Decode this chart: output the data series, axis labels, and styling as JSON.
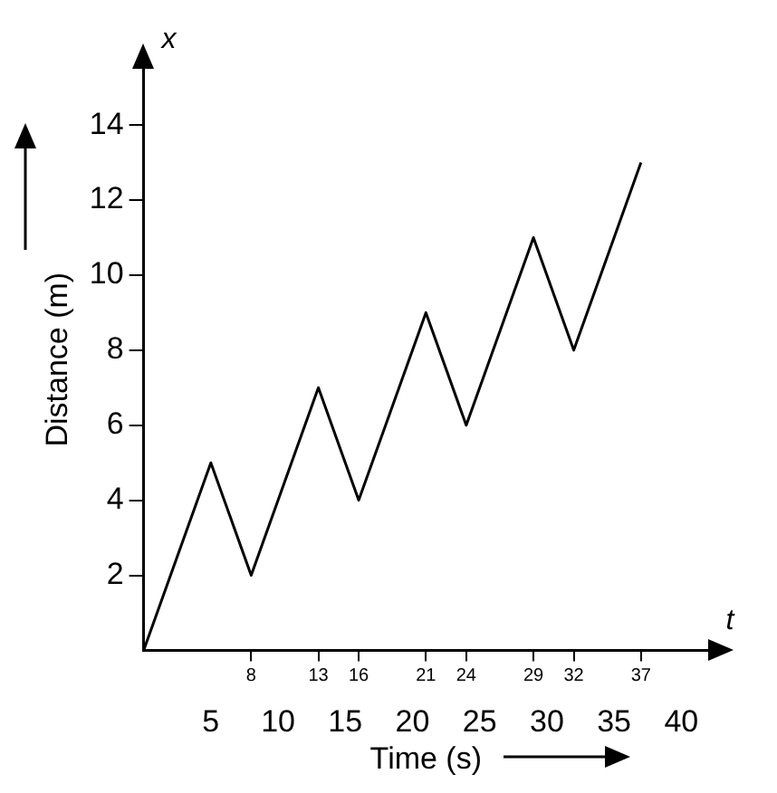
{
  "chart_data": {
    "type": "line",
    "xlabel": "Time (s)",
    "ylabel": "Distance (m)",
    "annotations": [
      "x",
      "t"
    ],
    "x": [
      0,
      5,
      8,
      13,
      16,
      21,
      24,
      29,
      32,
      37
    ],
    "series": [
      {
        "color": "#000000",
        "values": [
          0,
          5,
          2,
          7,
          4,
          9,
          6,
          11,
          8,
          13
        ]
      }
    ],
    "xlim": [
      0,
      42
    ],
    "ylim": [
      0,
      15.5
    ],
    "xticks": [
      8,
      13,
      16,
      21,
      24,
      29,
      32,
      37
    ],
    "x2lim": [
      0,
      42
    ],
    "x2ticks": [
      5,
      10,
      15,
      20,
      25,
      30,
      35,
      40
    ],
    "yticks": [
      2,
      4,
      6,
      8,
      10,
      12,
      14
    ],
    "grid": false,
    "legend": false,
    "marker": "none",
    "line_style": "solid"
  }
}
